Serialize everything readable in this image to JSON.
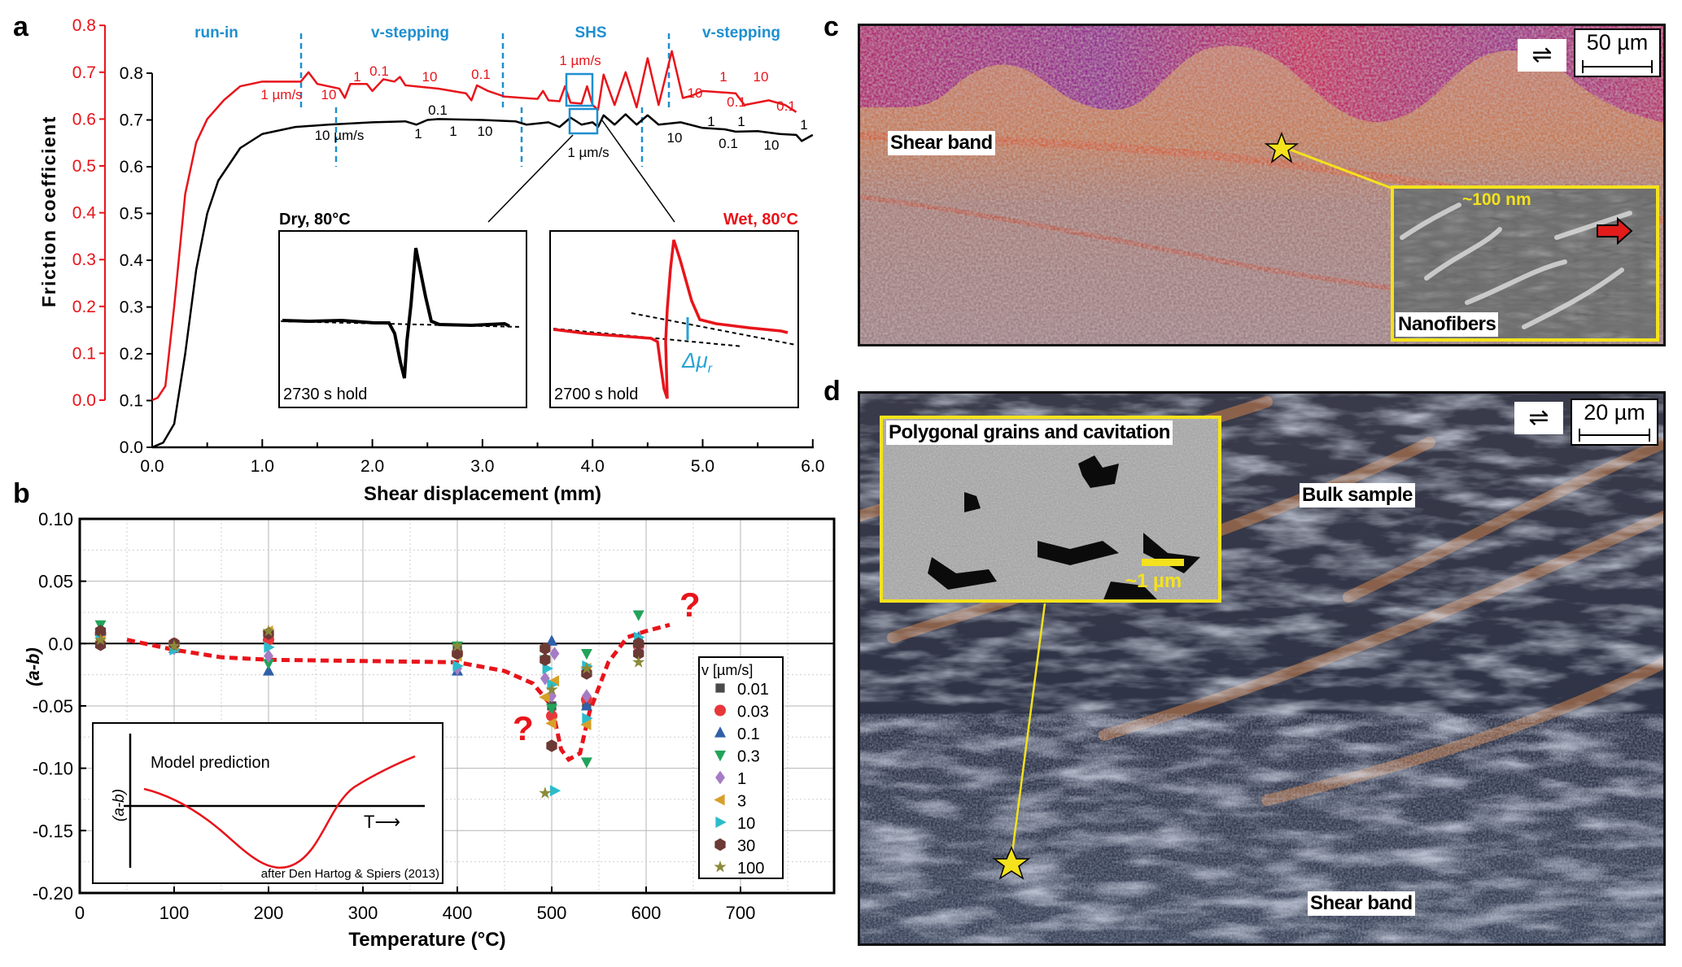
{
  "panel_letters": {
    "a": "a",
    "b": "b",
    "c": "c",
    "d": "d"
  },
  "chart_data": [
    {
      "type": "line",
      "panel": "a",
      "xlabel": "Shear displacement (mm)",
      "ylabel": "Friction coefficient",
      "xlim": [
        0,
        6
      ],
      "xticks": [
        "0.0",
        "1.0",
        "2.0",
        "3.0",
        "4.0",
        "5.0",
        "6.0"
      ],
      "ylim_left_red": [
        0,
        0.8
      ],
      "yticks_red": [
        "0.0",
        "0.1",
        "0.2",
        "0.3",
        "0.4",
        "0.5",
        "0.6",
        "0.7",
        "0.8"
      ],
      "ylim_left_black": [
        0,
        0.8
      ],
      "yticks_black": [
        "0.0",
        "0.1",
        "0.2",
        "0.3",
        "0.4",
        "0.5",
        "0.6",
        "0.7",
        "0.8"
      ],
      "phases": [
        "run-in",
        "v-stepping",
        "SHS",
        "v-stepping"
      ],
      "series": [
        {
          "axis": "red",
          "color": "#e8141b",
          "points": [
            [
              0,
              0.0
            ],
            [
              0.05,
              0.005
            ],
            [
              0.12,
              0.03
            ],
            [
              0.2,
              0.2
            ],
            [
              0.3,
              0.44
            ],
            [
              0.4,
              0.55
            ],
            [
              0.5,
              0.6
            ],
            [
              0.65,
              0.64
            ],
            [
              0.8,
              0.67
            ],
            [
              1.0,
              0.68
            ],
            [
              1.35,
              0.68
            ],
            [
              1.42,
              0.7
            ],
            [
              1.5,
              0.675
            ],
            [
              1.7,
              0.665
            ],
            [
              1.75,
              0.645
            ],
            [
              1.8,
              0.675
            ],
            [
              1.95,
              0.675
            ],
            [
              2.0,
              0.66
            ],
            [
              2.1,
              0.685
            ],
            [
              2.2,
              0.68
            ],
            [
              2.25,
              0.69
            ],
            [
              2.3,
              0.672
            ],
            [
              2.6,
              0.665
            ],
            [
              2.85,
              0.655
            ],
            [
              2.9,
              0.64
            ],
            [
              2.95,
              0.672
            ],
            [
              3.05,
              0.66
            ],
            [
              3.2,
              0.648
            ],
            [
              3.5,
              0.643
            ],
            [
              3.55,
              0.66
            ],
            [
              3.6,
              0.64
            ],
            [
              3.7,
              0.638
            ],
            [
              3.75,
              0.67
            ],
            [
              3.8,
              0.635
            ],
            [
              3.9,
              0.633
            ],
            [
              3.95,
              0.67
            ],
            [
              4.0,
              0.63
            ],
            [
              4.05,
              0.62
            ],
            [
              4.1,
              0.695
            ],
            [
              4.2,
              0.63
            ],
            [
              4.3,
              0.7
            ],
            [
              4.4,
              0.625
            ],
            [
              4.5,
              0.73
            ],
            [
              4.6,
              0.63
            ],
            [
              4.72,
              0.745
            ],
            [
              4.82,
              0.645
            ],
            [
              4.9,
              0.65
            ],
            [
              5.0,
              0.66
            ],
            [
              5.3,
              0.655
            ],
            [
              5.38,
              0.63
            ],
            [
              5.6,
              0.64
            ],
            [
              5.75,
              0.63
            ],
            [
              5.85,
              0.615
            ]
          ]
        },
        {
          "axis": "black",
          "color": "#000000",
          "points": [
            [
              0,
              0.0
            ],
            [
              0.1,
              0.01
            ],
            [
              0.2,
              0.05
            ],
            [
              0.3,
              0.2
            ],
            [
              0.4,
              0.38
            ],
            [
              0.5,
              0.5
            ],
            [
              0.6,
              0.57
            ],
            [
              0.8,
              0.64
            ],
            [
              1.0,
              0.67
            ],
            [
              1.3,
              0.685
            ],
            [
              1.6,
              0.69
            ],
            [
              2.0,
              0.695
            ],
            [
              2.3,
              0.697
            ],
            [
              2.4,
              0.69
            ],
            [
              2.5,
              0.7
            ],
            [
              2.6,
              0.702
            ],
            [
              3.0,
              0.7
            ],
            [
              3.3,
              0.697
            ],
            [
              3.4,
              0.69
            ],
            [
              3.6,
              0.695
            ],
            [
              3.7,
              0.685
            ],
            [
              3.8,
              0.705
            ],
            [
              3.9,
              0.69
            ],
            [
              4.0,
              0.695
            ],
            [
              4.05,
              0.685
            ],
            [
              4.1,
              0.71
            ],
            [
              4.2,
              0.69
            ],
            [
              4.3,
              0.712
            ],
            [
              4.4,
              0.69
            ],
            [
              4.5,
              0.71
            ],
            [
              4.6,
              0.69
            ],
            [
              4.8,
              0.695
            ],
            [
              5.0,
              0.683
            ],
            [
              5.2,
              0.68
            ],
            [
              5.3,
              0.675
            ],
            [
              5.5,
              0.676
            ],
            [
              5.7,
              0.67
            ],
            [
              5.85,
              0.668
            ],
            [
              5.9,
              0.655
            ],
            [
              6.0,
              0.668
            ]
          ]
        }
      ],
      "rate_labels_red": [
        "1 µm/s",
        "10",
        "1",
        "0.1",
        "10",
        "0.1",
        "1 µm/s",
        "10",
        "1",
        "0.1",
        "10",
        "0.1"
      ],
      "rate_labels_black": [
        "0.1",
        "10 µm/s",
        "1",
        "1",
        "10",
        "1 µm/s",
        "10",
        "1",
        "0.1",
        "1",
        "10",
        "1"
      ],
      "insets": {
        "dry": {
          "title": "Dry, 80°C",
          "hold": "2730 s hold",
          "color": "#000000"
        },
        "wet": {
          "title": "Wet, 80°C",
          "hold": "2700 s hold",
          "color": "#e8141b",
          "delta_label": "Δμ",
          "delta_sub": "r"
        }
      }
    },
    {
      "type": "scatter",
      "panel": "b",
      "xlabel": "Temperature (°C)",
      "ylabel": "(a-b)",
      "xlim": [
        0,
        800
      ],
      "ylim": [
        -0.2,
        0.1
      ],
      "xticks": [
        "0",
        "100",
        "200",
        "300",
        "400",
        "500",
        "600",
        "700"
      ],
      "yticks": [
        "0.10",
        "0.05",
        "0.0",
        "-0.05",
        "-0.10",
        "-0.15",
        "-0.20"
      ],
      "grid": true,
      "legend": {
        "title": "v [µm/s]",
        "placement": "right"
      },
      "series": [
        {
          "name": "0.01",
          "marker": "square",
          "color": "#4a4a4a",
          "points": [
            [
              22,
              0.005
            ],
            [
              100,
              -0.003
            ],
            [
              200,
              0.005
            ],
            [
              400,
              -0.005
            ],
            [
              500,
              -0.05
            ],
            [
              537,
              -0.048
            ],
            [
              592,
              -0.005
            ]
          ]
        },
        {
          "name": "0.03",
          "marker": "circle",
          "color": "#e8373b",
          "points": [
            [
              22,
              0.008
            ],
            [
              100,
              0.0
            ],
            [
              200,
              0.003
            ],
            [
              400,
              -0.008
            ],
            [
              500,
              -0.058
            ],
            [
              537,
              -0.045
            ],
            [
              592,
              -0.002
            ]
          ]
        },
        {
          "name": "0.1",
          "marker": "triangle-up",
          "color": "#2f5fa8",
          "points": [
            [
              22,
              0.01
            ],
            [
              100,
              -0.004
            ],
            [
              200,
              -0.022
            ],
            [
              400,
              -0.022
            ],
            [
              500,
              0.002
            ],
            [
              537,
              -0.05
            ],
            [
              592,
              0.005
            ]
          ]
        },
        {
          "name": "0.3",
          "marker": "triangle-down",
          "color": "#22a35a",
          "points": [
            [
              22,
              0.015
            ],
            [
              100,
              -0.002
            ],
            [
              200,
              -0.016
            ],
            [
              400,
              -0.002
            ],
            [
              493,
              -0.013
            ],
            [
              500,
              -0.052
            ],
            [
              537,
              -0.008
            ],
            [
              537,
              -0.095
            ],
            [
              592,
              0.023
            ]
          ]
        },
        {
          "name": "1",
          "marker": "diamond",
          "color": "#a57cc5",
          "points": [
            [
              22,
              0.005
            ],
            [
              100,
              -0.004
            ],
            [
              200,
              -0.01
            ],
            [
              400,
              -0.02
            ],
            [
              493,
              -0.028
            ],
            [
              500,
              -0.042
            ],
            [
              503,
              -0.008
            ],
            [
              537,
              -0.042
            ],
            [
              592,
              -0.005
            ]
          ]
        },
        {
          "name": "3",
          "marker": "triangle-left",
          "color": "#d6a02a",
          "points": [
            [
              22,
              0.002
            ],
            [
              100,
              -0.003
            ],
            [
              200,
              0.01
            ],
            [
              400,
              -0.01
            ],
            [
              493,
              -0.043
            ],
            [
              500,
              -0.064
            ],
            [
              503,
              -0.03
            ],
            [
              537,
              -0.065
            ],
            [
              537,
              -0.02
            ]
          ]
        },
        {
          "name": "10",
          "marker": "triangle-right",
          "color": "#2bbccc",
          "points": [
            [
              22,
              0.008
            ],
            [
              100,
              -0.005
            ],
            [
              200,
              -0.003
            ],
            [
              400,
              -0.018
            ],
            [
              495,
              -0.02
            ],
            [
              500,
              -0.033
            ],
            [
              503,
              -0.118
            ],
            [
              537,
              -0.018
            ],
            [
              537,
              -0.06
            ],
            [
              592,
              0.005
            ]
          ]
        },
        {
          "name": "30",
          "marker": "hexagon",
          "color": "#6b3a35",
          "points": [
            [
              22,
              -0.001
            ],
            [
              22,
              0.01
            ],
            [
              100,
              0.0
            ],
            [
              200,
              0.008
            ],
            [
              400,
              -0.008
            ],
            [
              493,
              -0.004
            ],
            [
              493,
              -0.013
            ],
            [
              500,
              -0.082
            ],
            [
              537,
              -0.024
            ],
            [
              592,
              -0.008
            ],
            [
              592,
              0.0
            ]
          ]
        },
        {
          "name": "100",
          "marker": "star",
          "color": "#8c8a3a",
          "points": [
            [
              22,
              0.003
            ],
            [
              100,
              -0.002
            ],
            [
              200,
              0.01
            ],
            [
              400,
              -0.002
            ],
            [
              493,
              -0.12
            ],
            [
              500,
              -0.037
            ],
            [
              537,
              -0.02
            ],
            [
              592,
              -0.015
            ]
          ]
        }
      ],
      "trend": {
        "color": "#e8141b",
        "style": "dashed",
        "points": [
          [
            50,
            0.003
          ],
          [
            100,
            -0.005
          ],
          [
            150,
            -0.011
          ],
          [
            200,
            -0.013
          ],
          [
            300,
            -0.014
          ],
          [
            400,
            -0.015
          ],
          [
            450,
            -0.022
          ],
          [
            480,
            -0.032
          ],
          [
            500,
            -0.05
          ],
          [
            510,
            -0.085
          ],
          [
            518,
            -0.093
          ],
          [
            530,
            -0.088
          ],
          [
            540,
            -0.055
          ],
          [
            560,
            -0.015
          ],
          [
            580,
            0.005
          ],
          [
            600,
            0.01
          ],
          [
            625,
            0.015
          ]
        ]
      },
      "question_marks": [
        "?",
        "?"
      ],
      "inset": {
        "title": "Model prediction",
        "ylabel": "(a-b)",
        "xlabel": "T⟶",
        "credit": "after Den Hartog & Spiers (2013)"
      }
    }
  ],
  "panel_c": {
    "label_shear_band": "Shear band",
    "scale": "50 µm",
    "shear_sense": "⇌",
    "inset_label": "Nanofibers",
    "inset_scale": "~100 nm"
  },
  "panel_d": {
    "label_bulk": "Bulk sample",
    "label_shear_band": "Shear band",
    "scale": "20 µm",
    "shear_sense": "⇌",
    "inset_label": "Polygonal grains and cavitation",
    "inset_scale": "~1 µm"
  }
}
